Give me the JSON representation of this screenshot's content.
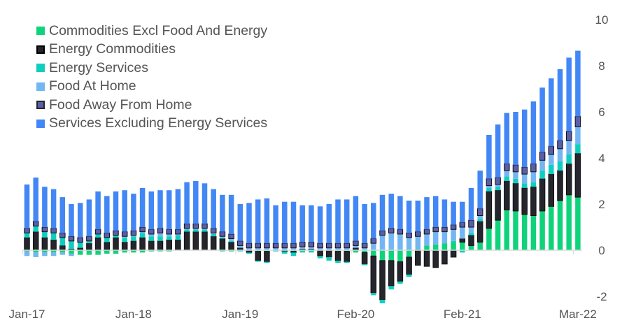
{
  "chart_data": {
    "type": "bar",
    "stacked": true,
    "title": "",
    "xlabel": "",
    "ylabel": "",
    "ylim": [
      -2,
      10
    ],
    "yticks": [
      10,
      8,
      6,
      4,
      2,
      0,
      -2
    ],
    "y_axis_side": "right",
    "grid": false,
    "legend_position": "top-left",
    "x_tick_labels": [
      {
        "index": 0,
        "label": "Jan-17"
      },
      {
        "index": 12,
        "label": "Jan-18"
      },
      {
        "index": 24,
        "label": "Jan-19"
      },
      {
        "index": 37,
        "label": "Feb-20"
      },
      {
        "index": 49,
        "label": "Feb-21"
      },
      {
        "index": 62,
        "label": "Mar-22"
      }
    ],
    "categories": [
      "Jan-17",
      "Feb-17",
      "Mar-17",
      "Apr-17",
      "May-17",
      "Jun-17",
      "Jul-17",
      "Aug-17",
      "Sep-17",
      "Oct-17",
      "Nov-17",
      "Dec-17",
      "Jan-18",
      "Feb-18",
      "Mar-18",
      "Apr-18",
      "May-18",
      "Jun-18",
      "Jul-18",
      "Aug-18",
      "Sep-18",
      "Oct-18",
      "Nov-18",
      "Dec-18",
      "Jan-19",
      "Feb-19",
      "Mar-19",
      "Apr-19",
      "May-19",
      "Jun-19",
      "Jul-19",
      "Aug-19",
      "Sep-19",
      "Oct-19",
      "Nov-19",
      "Dec-19",
      "Jan-20",
      "Feb-20",
      "Mar-20",
      "Apr-20",
      "May-20",
      "Jun-20",
      "Jul-20",
      "Aug-20",
      "Sep-20",
      "Oct-20",
      "Nov-20",
      "Dec-20",
      "Jan-21",
      "Feb-21",
      "Mar-21",
      "Apr-21",
      "May-21",
      "Jun-21",
      "Jul-21",
      "Aug-21",
      "Sep-21",
      "Oct-21",
      "Nov-21",
      "Dec-21",
      "Jan-22",
      "Feb-22",
      "Mar-22"
    ],
    "series": [
      {
        "name": "Commodities Excl Food And Energy",
        "color": "#0fd37a",
        "values": [
          -0.05,
          -0.1,
          -0.1,
          -0.1,
          -0.1,
          -0.15,
          -0.2,
          -0.2,
          -0.2,
          -0.15,
          -0.15,
          -0.1,
          -0.1,
          -0.1,
          -0.05,
          -0.05,
          -0.05,
          0.0,
          0.0,
          0.0,
          0.0,
          0.0,
          -0.05,
          -0.05,
          0.0,
          0.0,
          -0.05,
          -0.05,
          0.0,
          0.0,
          -0.05,
          -0.05,
          0.0,
          0.0,
          0.0,
          -0.05,
          -0.05,
          -0.1,
          -0.1,
          -0.25,
          -0.45,
          -0.45,
          -0.5,
          -0.3,
          0.05,
          0.2,
          0.25,
          0.3,
          0.35,
          0.35,
          0.2,
          0.35,
          0.95,
          1.3,
          1.75,
          1.7,
          1.55,
          1.5,
          1.7,
          1.9,
          2.15,
          2.4,
          2.3
        ]
      },
      {
        "name": "Energy Commodities",
        "color": "#25262d",
        "values": [
          0.55,
          0.8,
          0.55,
          0.45,
          0.2,
          0.05,
          0.1,
          0.3,
          0.55,
          0.35,
          0.55,
          0.35,
          0.4,
          0.55,
          0.4,
          0.4,
          0.45,
          0.45,
          0.8,
          0.8,
          0.8,
          0.6,
          0.5,
          0.35,
          0.1,
          -0.1,
          -0.4,
          -0.45,
          0.0,
          -0.05,
          -0.05,
          0.05,
          0.05,
          -0.25,
          -0.3,
          -0.4,
          -0.45,
          0.1,
          -0.5,
          -1.6,
          -1.7,
          -1.1,
          -0.85,
          -0.75,
          -0.65,
          -0.7,
          -0.75,
          -0.6,
          -0.3,
          0.15,
          0.45,
          0.9,
          1.6,
          1.3,
          1.25,
          1.2,
          1.15,
          1.25,
          1.4,
          1.4,
          1.3,
          1.35,
          1.9
        ]
      },
      {
        "name": "Energy Services",
        "color": "#0ecfbf",
        "values": [
          0.2,
          0.25,
          0.25,
          0.3,
          0.35,
          0.35,
          0.25,
          0.1,
          0.15,
          0.2,
          0.1,
          0.2,
          0.2,
          0.2,
          0.2,
          0.2,
          0.15,
          0.2,
          0.1,
          0.1,
          0.1,
          0.1,
          0.05,
          0.05,
          -0.05,
          -0.05,
          -0.05,
          -0.05,
          -0.05,
          -0.1,
          -0.15,
          -0.05,
          -0.1,
          -0.1,
          -0.15,
          -0.1,
          -0.05,
          0.0,
          -0.05,
          -0.1,
          -0.15,
          -0.15,
          -0.1,
          -0.1,
          0.0,
          0.0,
          0.0,
          0.0,
          0.05,
          -0.1,
          0.1,
          0.1,
          0.15,
          0.15,
          0.2,
          0.2,
          0.2,
          0.2,
          0.35,
          0.4,
          0.4,
          0.4,
          0.4
        ]
      },
      {
        "name": "Food At Home",
        "color": "#74b6f3",
        "values": [
          -0.2,
          -0.2,
          -0.15,
          -0.15,
          -0.1,
          -0.1,
          0.0,
          0.0,
          0.0,
          0.0,
          0.0,
          0.05,
          0.05,
          0.05,
          0.1,
          0.15,
          0.1,
          0.05,
          0.05,
          0.05,
          0.05,
          0.05,
          0.05,
          0.1,
          0.1,
          0.1,
          0.1,
          0.1,
          0.1,
          0.1,
          0.1,
          0.1,
          0.1,
          0.1,
          0.1,
          0.1,
          0.1,
          0.1,
          0.1,
          0.3,
          0.65,
          0.75,
          0.7,
          0.55,
          0.55,
          0.5,
          0.55,
          0.5,
          0.5,
          0.5,
          0.25,
          0.15,
          0.1,
          0.1,
          0.25,
          0.3,
          0.4,
          0.45,
          0.45,
          0.45,
          0.55,
          0.6,
          0.75
        ]
      },
      {
        "name": "Food Away From Home",
        "color": "#5a5ea8",
        "values": [
          0.2,
          0.2,
          0.2,
          0.2,
          0.2,
          0.2,
          0.2,
          0.2,
          0.2,
          0.2,
          0.2,
          0.2,
          0.2,
          0.2,
          0.2,
          0.2,
          0.2,
          0.2,
          0.2,
          0.2,
          0.2,
          0.2,
          0.2,
          0.2,
          0.2,
          0.2,
          0.2,
          0.2,
          0.2,
          0.2,
          0.2,
          0.2,
          0.2,
          0.2,
          0.2,
          0.2,
          0.2,
          0.2,
          0.2,
          0.2,
          0.2,
          0.2,
          0.2,
          0.2,
          0.2,
          0.2,
          0.2,
          0.2,
          0.2,
          0.2,
          0.3,
          0.3,
          0.3,
          0.3,
          0.3,
          0.3,
          0.3,
          0.35,
          0.35,
          0.35,
          0.35,
          0.4,
          0.45
        ]
      },
      {
        "name": "Services Excluding Energy Services",
        "color": "#4287f5",
        "values": [
          1.9,
          1.9,
          1.75,
          1.7,
          1.55,
          1.4,
          1.5,
          1.6,
          1.65,
          1.6,
          1.7,
          1.8,
          1.6,
          1.7,
          1.65,
          1.65,
          1.7,
          1.75,
          1.8,
          1.85,
          1.75,
          1.7,
          1.6,
          1.7,
          1.6,
          1.75,
          1.9,
          1.95,
          1.65,
          1.8,
          1.8,
          1.6,
          1.6,
          1.6,
          1.7,
          1.9,
          1.9,
          1.95,
          1.7,
          1.55,
          1.55,
          1.5,
          1.45,
          1.4,
          1.35,
          1.4,
          1.35,
          1.2,
          1.0,
          0.9,
          1.4,
          1.65,
          1.9,
          2.3,
          2.2,
          2.3,
          2.5,
          2.7,
          2.8,
          2.95,
          3.1,
          3.2,
          2.85
        ]
      }
    ]
  }
}
